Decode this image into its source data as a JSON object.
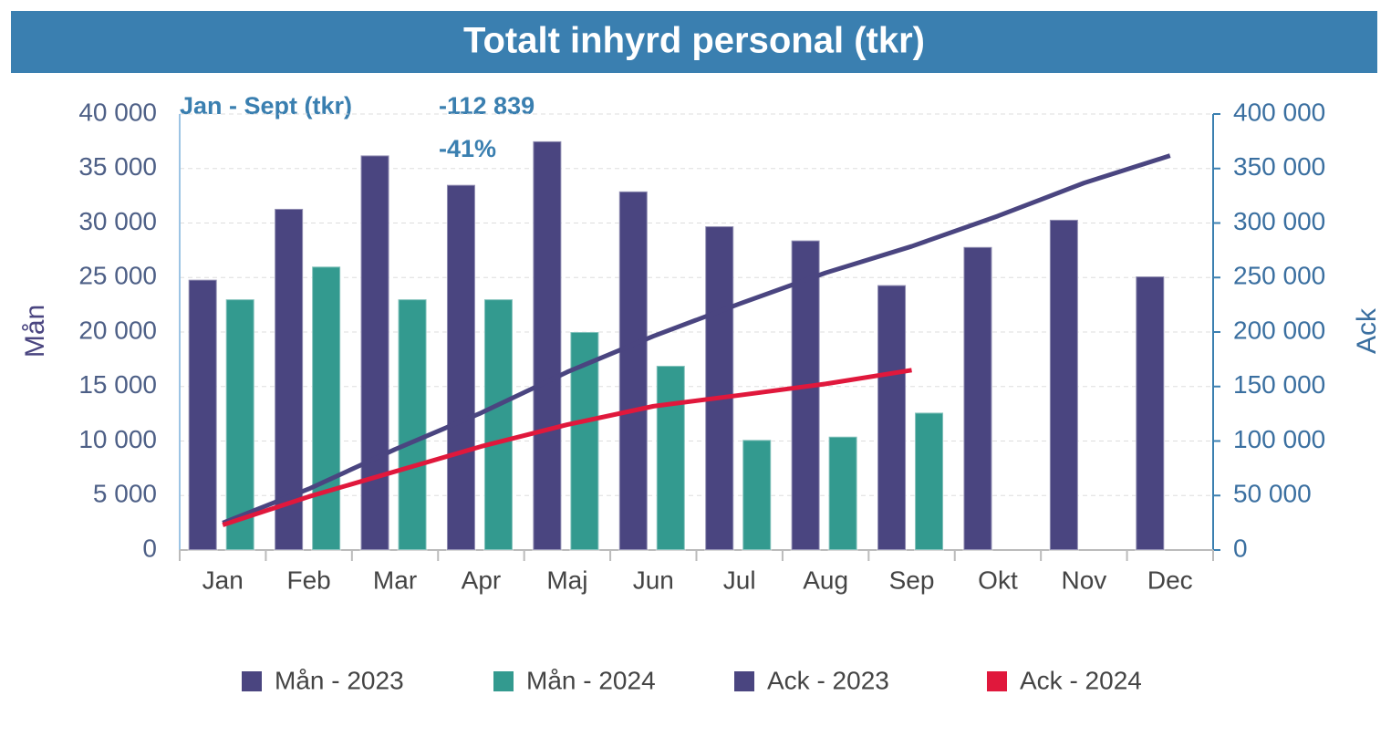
{
  "chart_data": {
    "type": "bar-line",
    "title": "Totalt inhyrd personal (tkr)",
    "annotations": [
      "Jan - Sept (tkr)",
      "-112 839",
      "-41%"
    ],
    "ylabel": "Mån",
    "y2label": "Ack",
    "categories": [
      "Jan",
      "Feb",
      "Mar",
      "Apr",
      "Maj",
      "Jun",
      "Jul",
      "Aug",
      "Sep",
      "Okt",
      "Nov",
      "Dec"
    ],
    "series": [
      {
        "name": "Mån - 2023",
        "type": "bar",
        "color": "#4a4580",
        "values": [
          24800,
          31300,
          36200,
          33500,
          37500,
          32900,
          29700,
          28400,
          24300,
          27800,
          30300,
          25100
        ]
      },
      {
        "name": "Mån - 2024",
        "type": "bar",
        "color": "#339a8f",
        "values": [
          23000,
          26000,
          23000,
          23000,
          20000,
          16900,
          10100,
          10400,
          12600,
          null,
          null,
          null
        ]
      },
      {
        "name": "Ack - 2023",
        "type": "line",
        "axis": "y2",
        "color": "#4a4580",
        "values": [
          24800,
          56100,
          92300,
          125800,
          163300,
          196200,
          225900,
          254300,
          278600,
          306400,
          336700,
          361800
        ]
      },
      {
        "name": "Ack - 2024",
        "type": "line",
        "axis": "y2",
        "color": "#e0183c",
        "values": [
          23000,
          49000,
          72000,
          95000,
          115000,
          131900,
          142000,
          152400,
          165000,
          null,
          null,
          null
        ]
      }
    ],
    "ylim": [
      0,
      40000
    ],
    "yticks": [
      0,
      {
        "value": 5000,
        "label": "5 000"
      },
      {
        "value": 10000,
        "label": "10 000"
      },
      {
        "value": 15000,
        "label": "15 000"
      },
      {
        "value": 20000,
        "label": "20 000"
      },
      {
        "value": 25000,
        "label": "25 000"
      },
      {
        "value": 30000,
        "label": "30 000"
      },
      {
        "value": 35000,
        "label": "35 000"
      },
      {
        "value": 40000,
        "label": "40 000"
      }
    ],
    "y2lim": [
      0,
      400000
    ],
    "y2ticks": [
      0,
      {
        "value": 50000,
        "label": "50 000"
      },
      {
        "value": 100000,
        "label": "100 000"
      },
      {
        "value": 150000,
        "label": "150 000"
      },
      {
        "value": 200000,
        "label": "200 000"
      },
      {
        "value": 250000,
        "label": "250 000"
      },
      {
        "value": 300000,
        "label": "300 000"
      },
      {
        "value": 350000,
        "label": "350 000"
      },
      {
        "value": 400000,
        "label": "400 000"
      }
    ],
    "grid": true,
    "legend": "bottom"
  }
}
